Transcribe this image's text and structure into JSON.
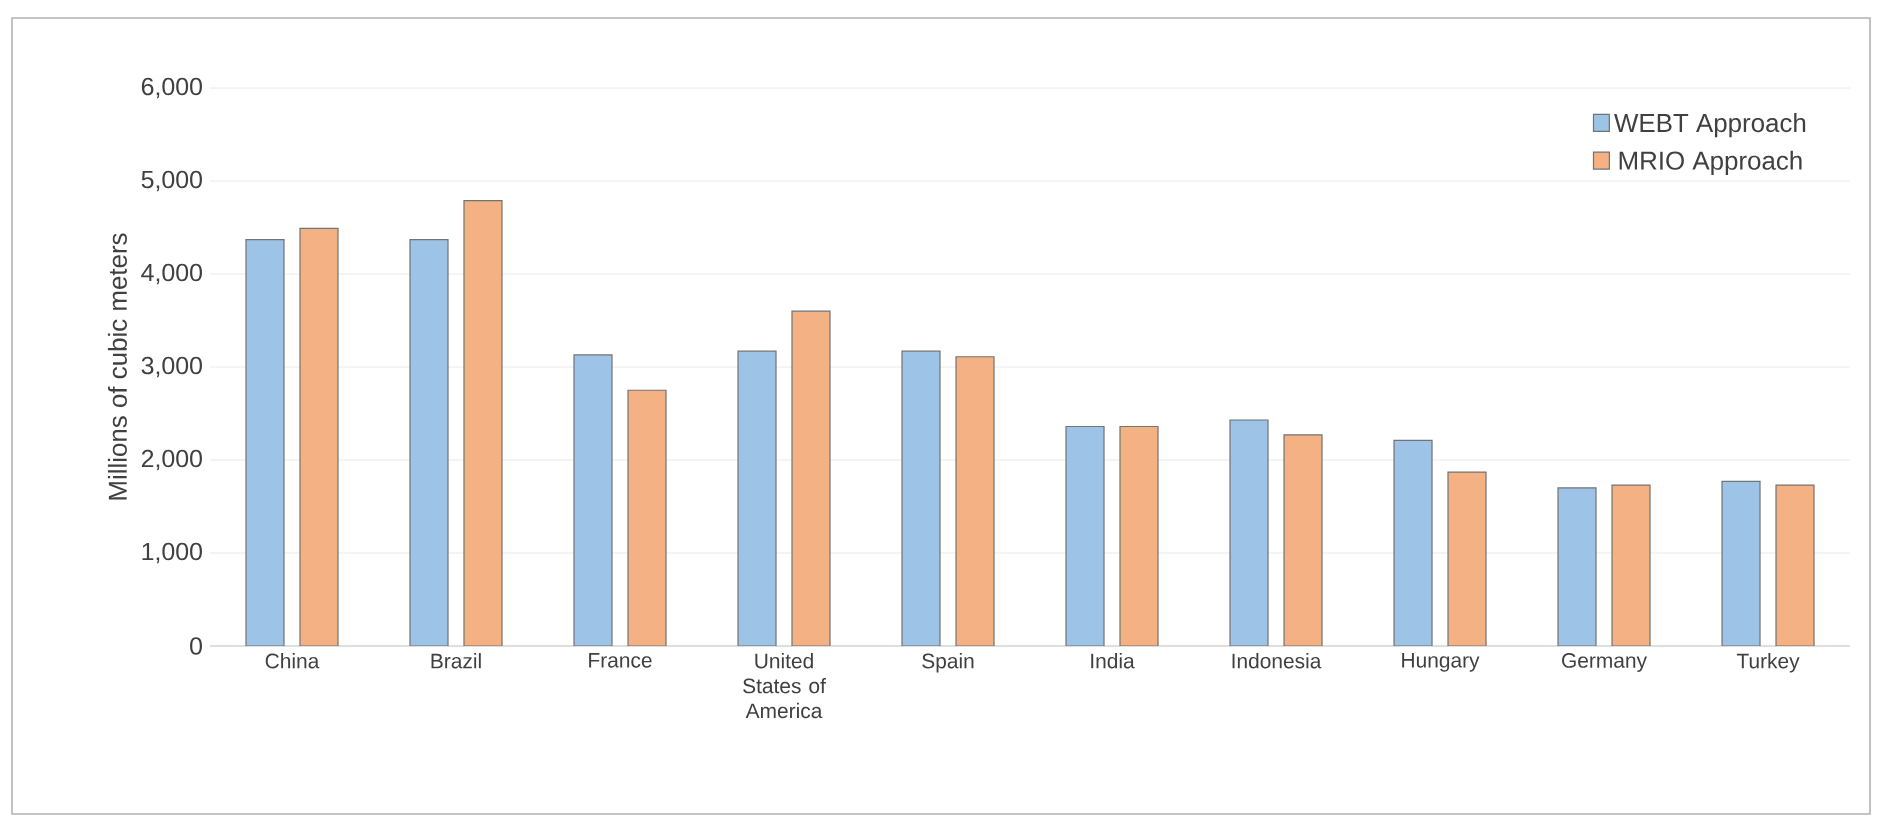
{
  "chart_data": {
    "type": "bar",
    "ylabel": "Millions of cubic meters",
    "categories": [
      "China",
      "Brazil",
      "France",
      "United States of America",
      "Spain",
      "India",
      "Indonesia",
      "Hungary",
      "Germany",
      "Turkey"
    ],
    "series": [
      {
        "name": "WEBT Approach",
        "color": "#9dc3e6",
        "values": [
          4370,
          4370,
          3130,
          3170,
          3170,
          2360,
          2430,
          2210,
          1700,
          1770
        ]
      },
      {
        "name": "MRIO Approach",
        "color": "#f4b183",
        "values": [
          4490,
          4790,
          2750,
          3600,
          3110,
          2360,
          2270,
          1870,
          1730,
          1730
        ]
      }
    ],
    "ylim": [
      0,
      6000
    ],
    "yticks": [
      {
        "value": 0,
        "label": "0"
      },
      {
        "value": 1000,
        "label": "1,000"
      },
      {
        "value": 2000,
        "label": "2,000"
      },
      {
        "value": 3000,
        "label": "3,000"
      },
      {
        "value": 4000,
        "label": "4,000"
      },
      {
        "value": 5000,
        "label": "5,000"
      },
      {
        "value": 6000,
        "label": "6,000"
      }
    ],
    "grid": "y",
    "legend": "top right"
  }
}
